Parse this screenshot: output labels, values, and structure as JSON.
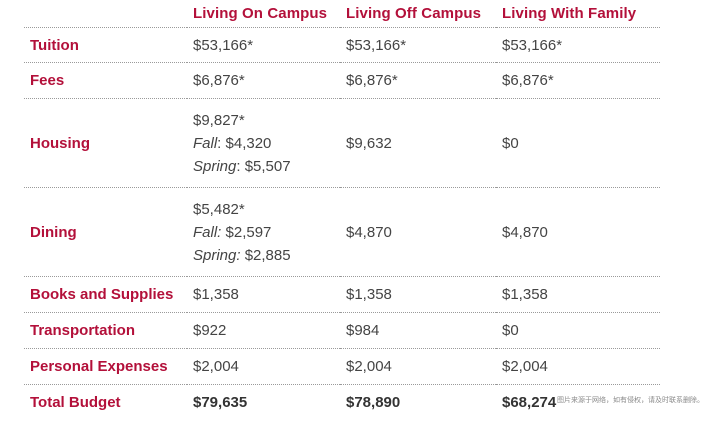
{
  "table": {
    "headers": [
      "",
      "Living On Campus",
      "Living Off Campus",
      "Living With Family"
    ],
    "rows": [
      {
        "label": "Tuition",
        "cells": [
          {
            "value": "$53,166*"
          },
          {
            "value": "$53,166*"
          },
          {
            "value": "$53,166*"
          }
        ]
      },
      {
        "label": "Fees",
        "cells": [
          {
            "value": "$6,876*"
          },
          {
            "value": "$6,876*"
          },
          {
            "value": "$6,876*"
          }
        ]
      },
      {
        "label": "Housing",
        "cells": [
          {
            "value": "$9,827*",
            "fall_label": "Fall",
            "fall_value": ": $4,320",
            "spring_label": "Spring",
            "spring_value": ": $5,507"
          },
          {
            "value": "$9,632"
          },
          {
            "value": "$0"
          }
        ]
      },
      {
        "label": "Dining",
        "cells": [
          {
            "value": "$5,482*",
            "fall_label": "Fall:",
            "fall_value": " $2,597",
            "spring_label": "Spring:",
            "spring_value": " $2,885"
          },
          {
            "value": "$4,870"
          },
          {
            "value": "$4,870"
          }
        ]
      },
      {
        "label": "Books and Supplies",
        "cells": [
          {
            "value": "$1,358"
          },
          {
            "value": "$1,358"
          },
          {
            "value": "$1,358"
          }
        ]
      },
      {
        "label": "Transportation",
        "cells": [
          {
            "value": "$922"
          },
          {
            "value": "$984"
          },
          {
            "value": "$0"
          }
        ]
      },
      {
        "label": "Personal Expenses",
        "cells": [
          {
            "value": "$2,004"
          },
          {
            "value": "$2,004"
          },
          {
            "value": "$2,004"
          }
        ]
      },
      {
        "label": "Total Budget",
        "cells": [
          {
            "value": "$79,635"
          },
          {
            "value": "$78,890"
          },
          {
            "value": "$68,274"
          }
        ]
      }
    ]
  },
  "watermark": "图片来源于网络，如有侵权，请及时联系删除。",
  "colors": {
    "accent": "#b3103a",
    "text": "#444444"
  }
}
